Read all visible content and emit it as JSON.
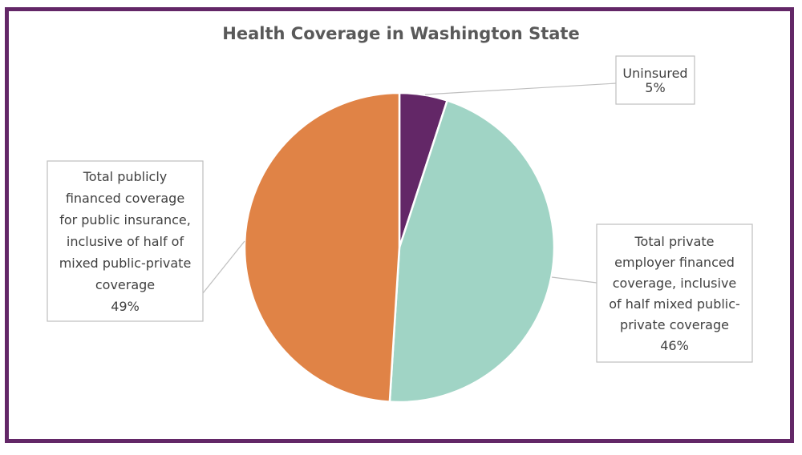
{
  "chart_data": {
    "type": "pie",
    "title": "Health Coverage in Washington State",
    "slices": [
      {
        "name": "Uninsured",
        "value": 5,
        "percent_label": "5%",
        "color": "#632767",
        "label_lines": [
          "Uninsured"
        ]
      },
      {
        "name": "Total private employer financed coverage, inclusive of half mixed public-private coverage",
        "value": 46,
        "percent_label": "46%",
        "color": "#a0d4c5",
        "label_lines": [
          "Total private",
          "employer financed",
          "coverage, inclusive",
          "of half mixed public-",
          "private coverage"
        ]
      },
      {
        "name": "Total publicly financed coverage for public insurance, inclusive of half of mixed public-private coverage",
        "value": 49,
        "percent_label": "49%",
        "color": "#e08346",
        "label_lines": [
          "Total publicly",
          "financed coverage",
          "for public insurance,",
          "inclusive of half of",
          "mixed public-private",
          "coverage"
        ]
      }
    ],
    "legend": "none",
    "data_labels": "callout-boxes"
  }
}
